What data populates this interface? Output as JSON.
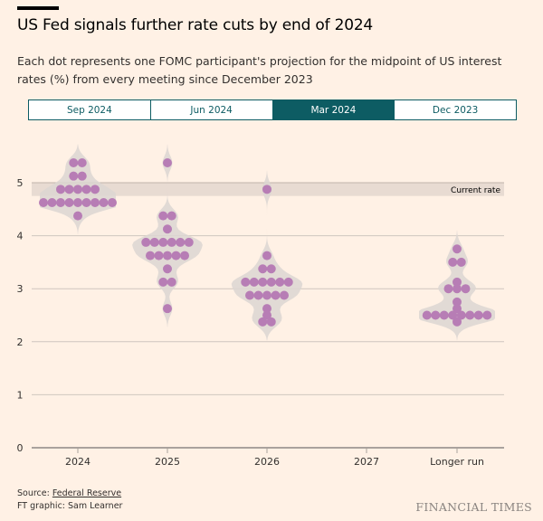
{
  "header": {
    "title": "US Fed signals further rate cuts by end of 2024",
    "subtitle": "Each dot represents one FOMC participant's projection for the midpoint of US interest rates (%) from every meeting since December 2023"
  },
  "tabs": [
    {
      "label": "Sep 2024",
      "active": false
    },
    {
      "label": "Jun 2024",
      "active": false
    },
    {
      "label": "Mar 2024",
      "active": true
    },
    {
      "label": "Dec 2023",
      "active": false
    }
  ],
  "colors": {
    "dot": "#b77db5",
    "violin": "#dcd6d2",
    "band": "#e8dbd2",
    "accent": "#0d5c63"
  },
  "chart_data": {
    "type": "scatter",
    "subtype": "dot-plot",
    "title": "US Fed signals further rate cuts by end of 2024",
    "xlabel": "",
    "ylabel": "",
    "ylim": [
      0,
      5.5
    ],
    "yticks": [
      0,
      1,
      2,
      3,
      4,
      5
    ],
    "grid": true,
    "categories": [
      "2024",
      "2025",
      "2026",
      "2027",
      "Longer run"
    ],
    "current_rate": {
      "label": "Current rate",
      "low": 4.75,
      "high": 5.0
    },
    "series": [
      {
        "name": "2024",
        "points": [
          {
            "value": 5.375,
            "count": 2
          },
          {
            "value": 5.125,
            "count": 2
          },
          {
            "value": 4.875,
            "count": 5
          },
          {
            "value": 4.625,
            "count": 9
          },
          {
            "value": 4.375,
            "count": 1
          }
        ]
      },
      {
        "name": "2025",
        "points": [
          {
            "value": 5.375,
            "count": 1
          },
          {
            "value": 4.375,
            "count": 2
          },
          {
            "value": 4.125,
            "count": 1
          },
          {
            "value": 3.875,
            "count": 6
          },
          {
            "value": 3.625,
            "count": 5
          },
          {
            "value": 3.375,
            "count": 1
          },
          {
            "value": 3.125,
            "count": 2
          },
          {
            "value": 2.625,
            "count": 1
          }
        ]
      },
      {
        "name": "2026",
        "points": [
          {
            "value": 4.875,
            "count": 1
          },
          {
            "value": 3.625,
            "count": 1
          },
          {
            "value": 3.375,
            "count": 2
          },
          {
            "value": 3.125,
            "count": 6
          },
          {
            "value": 2.875,
            "count": 5
          },
          {
            "value": 2.625,
            "count": 1
          },
          {
            "value": 2.5,
            "count": 1
          },
          {
            "value": 2.375,
            "count": 2
          }
        ]
      },
      {
        "name": "2027",
        "points": []
      },
      {
        "name": "Longer run",
        "points": [
          {
            "value": 3.75,
            "count": 1
          },
          {
            "value": 3.5,
            "count": 2
          },
          {
            "value": 3.125,
            "count": 1
          },
          {
            "value": 3.0,
            "count": 3
          },
          {
            "value": 2.75,
            "count": 1
          },
          {
            "value": 2.625,
            "count": 1
          },
          {
            "value": 2.5,
            "count": 8
          },
          {
            "value": 2.375,
            "count": 1
          }
        ]
      }
    ]
  },
  "footer": {
    "source_prefix": "Source: ",
    "source_link": "Federal Reserve",
    "credit": "FT graphic: Sam Learner",
    "brand": "FINANCIAL TIMES"
  }
}
